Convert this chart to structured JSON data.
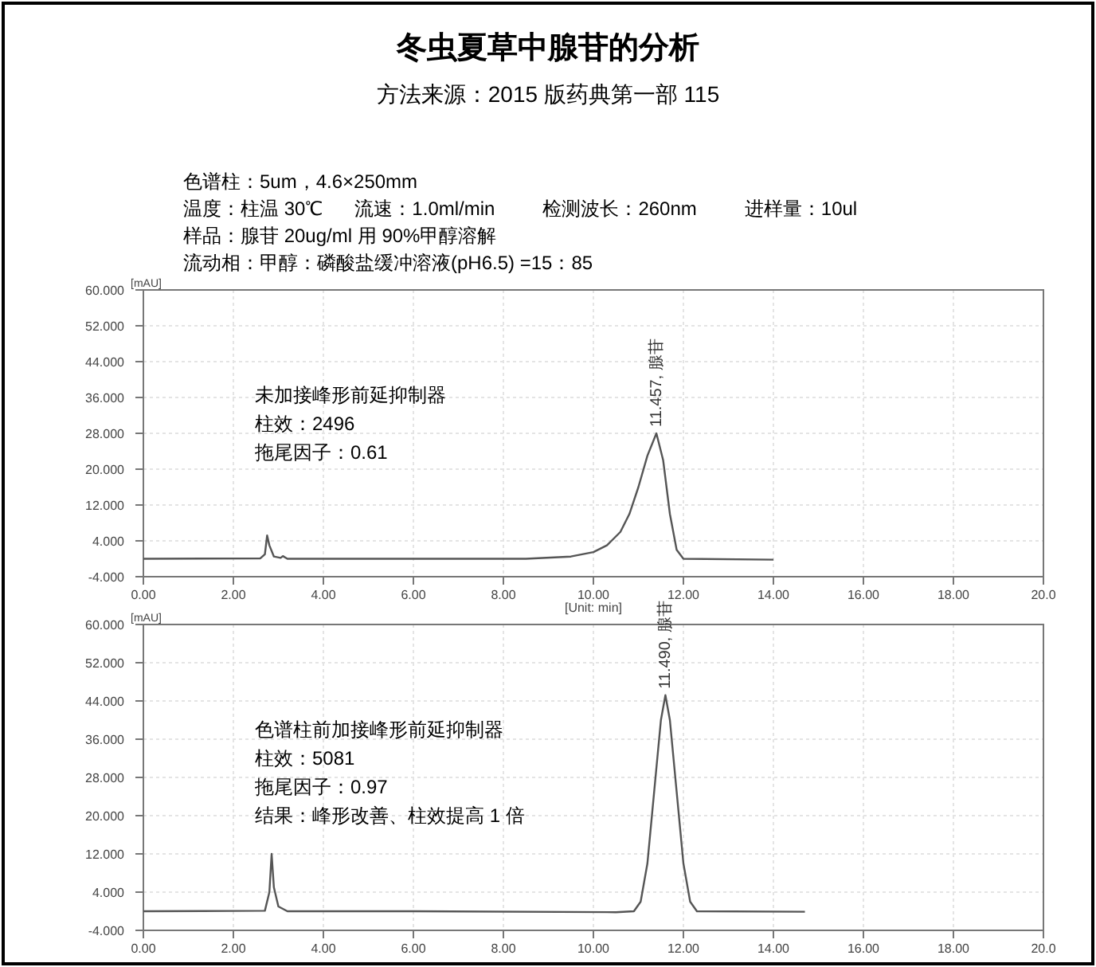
{
  "chart_data": [
    {
      "type": "other",
      "title": "冬虫夏草中腺苷的分析",
      "subtitle": "方法来源：2015 版药典第一部 115",
      "annotations": [
        "色谱柱：5um，4.6×250mm",
        "温度：柱温 30℃      流速：1.0ml/min         检测波长：260nm         进样量：10ul",
        "样品：腺苷 20ug/ml 用 90%甲醇溶解",
        "流动相：甲醇：磷酸盐缓冲溶液(pH6.5) =15：85"
      ]
    },
    {
      "type": "line",
      "xlabel": "[Unit: min]",
      "ylabel": "[mAU]",
      "xlim": [
        0,
        20
      ],
      "ylim": [
        -4,
        60
      ],
      "grid": true,
      "xticks": [
        {
          "value": 0,
          "label": "0.00"
        },
        {
          "value": 2,
          "label": "2.00"
        },
        {
          "value": 4,
          "label": "4.00"
        },
        {
          "value": 6,
          "label": "6.00"
        },
        {
          "value": 8,
          "label": "8.00"
        },
        {
          "value": 10,
          "label": "10.00"
        },
        {
          "value": 12,
          "label": "12.00"
        },
        {
          "value": 14,
          "label": "14.00"
        },
        {
          "value": 16,
          "label": "16.00"
        },
        {
          "value": 18,
          "label": "18.00"
        },
        {
          "value": 20,
          "label": "20.0"
        }
      ],
      "yticks": [
        {
          "value": -4,
          "label": "-4.000"
        },
        {
          "value": 4,
          "label": "4.000"
        },
        {
          "value": 12,
          "label": "12.000"
        },
        {
          "value": 20,
          "label": "20.000"
        },
        {
          "value": 28,
          "label": "28.000"
        },
        {
          "value": 36,
          "label": "36.000"
        },
        {
          "value": 44,
          "label": "44.000"
        },
        {
          "value": 52,
          "label": "52.000"
        },
        {
          "value": 60,
          "label": "60.000"
        }
      ],
      "annotations": [
        "未加接峰形前延抑制器",
        "柱效：2496",
        "拖尾因子：0.61",
        {
          "text": "11.457, 腺苷",
          "x": 11.4,
          "y": 28
        }
      ],
      "series": [
        {
          "color": "#555555",
          "x": [
            0,
            2.6,
            2.7,
            2.75,
            2.8,
            2.9,
            3.05,
            3.1,
            3.2,
            5,
            8.5,
            9.5,
            10,
            10.3,
            10.6,
            10.8,
            11,
            11.2,
            11.4,
            11.55,
            11.7,
            11.85,
            12,
            14
          ],
          "values": [
            0,
            0.1,
            1,
            5.2,
            3,
            0.5,
            0.2,
            0.6,
            0,
            0,
            0,
            0.5,
            1.5,
            3,
            6,
            10,
            16,
            23,
            28,
            22,
            10,
            2,
            0,
            -0.2
          ]
        }
      ]
    },
    {
      "type": "line",
      "ylabel": "[mAU]",
      "xlim": [
        0,
        20
      ],
      "ylim": [
        -4,
        60
      ],
      "grid": true,
      "xticks": [
        {
          "value": 0,
          "label": "0.00"
        },
        {
          "value": 2,
          "label": "2.00"
        },
        {
          "value": 4,
          "label": "4.00"
        },
        {
          "value": 6,
          "label": "6.00"
        },
        {
          "value": 8,
          "label": "8.00"
        },
        {
          "value": 10,
          "label": "10.00"
        },
        {
          "value": 12,
          "label": "12.00"
        },
        {
          "value": 14,
          "label": "14.00"
        },
        {
          "value": 16,
          "label": "16.00"
        },
        {
          "value": 18,
          "label": "18.00"
        },
        {
          "value": 20,
          "label": "20.0"
        }
      ],
      "yticks": [
        {
          "value": -4,
          "label": "-4.000"
        },
        {
          "value": 4,
          "label": "4.000"
        },
        {
          "value": 12,
          "label": "12.000"
        },
        {
          "value": 20,
          "label": "20.000"
        },
        {
          "value": 28,
          "label": "28.000"
        },
        {
          "value": 36,
          "label": "36.000"
        },
        {
          "value": 44,
          "label": "44.000"
        },
        {
          "value": 52,
          "label": "52.000"
        },
        {
          "value": 60,
          "label": "60.000"
        }
      ],
      "annotations": [
        "色谱柱前加接峰形前延抑制器",
        "柱效：5081",
        "拖尾因子：0.97",
        "结果：峰形改善、柱效提高 1 倍",
        {
          "text": "11.490, 腺苷",
          "x": 11.6,
          "y": 45.2
        }
      ],
      "series": [
        {
          "color": "#555555",
          "x": [
            0,
            2.7,
            2.8,
            2.85,
            2.9,
            3,
            3.2,
            6,
            10.5,
            10.9,
            11.05,
            11.2,
            11.35,
            11.5,
            11.6,
            11.7,
            11.85,
            12,
            12.15,
            12.3,
            14.7
          ],
          "values": [
            0,
            0.1,
            4,
            12,
            5,
            1,
            0,
            0,
            -0.2,
            0,
            2,
            10,
            25,
            40,
            45.2,
            40,
            25,
            10,
            2,
            0,
            -0.1
          ]
        }
      ]
    }
  ]
}
